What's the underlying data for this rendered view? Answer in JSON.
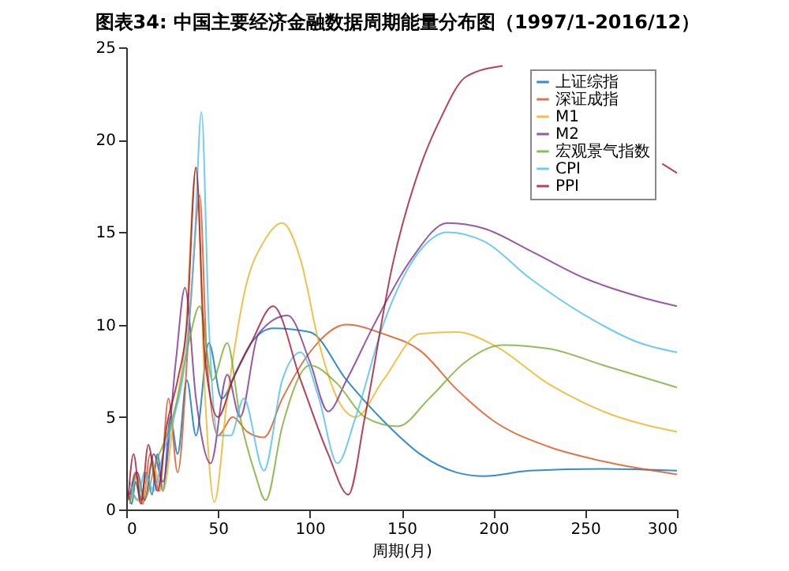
{
  "chart_data": {
    "type": "line",
    "title": "图表34:   中国主要经济金融数据周期能量分布图（1997/1-2016/12）",
    "xlabel": "周期(月)",
    "xlim": [
      0,
      300
    ],
    "xticks": [
      0,
      50,
      100,
      150,
      200,
      250,
      300
    ],
    "ylim": [
      0,
      25
    ],
    "yticks": [
      0,
      5,
      10,
      15,
      20,
      25
    ],
    "grid": false,
    "legend": "top right",
    "marker": "none",
    "line_style": "solid",
    "series": [
      {
        "name": "上证综指",
        "color": "#0072bd",
        "x": [
          1,
          3,
          5,
          8,
          11,
          14,
          17,
          20,
          24,
          28,
          33,
          38,
          45,
          52,
          60,
          68,
          80,
          100,
          120,
          140,
          160,
          180,
          195,
          220,
          260,
          300
        ],
        "values": [
          1,
          0.3,
          1.5,
          0.5,
          2,
          0.8,
          3,
          1,
          5,
          3,
          7,
          4,
          9,
          6,
          7.5,
          9,
          9.8,
          9.6,
          7,
          4.8,
          3,
          2,
          1.8,
          2.1,
          2.2,
          2.1
        ]
      },
      {
        "name": "深证成指",
        "color": "#d95319",
        "x": [
          2,
          5,
          9,
          13,
          18,
          23,
          28,
          35,
          40,
          44,
          50,
          58,
          66,
          75,
          85,
          100,
          120,
          140,
          160,
          180,
          200,
          230,
          260,
          300
        ],
        "values": [
          0.5,
          2,
          0.3,
          3,
          1,
          6,
          2,
          11,
          17,
          8,
          4,
          5,
          4.2,
          3.9,
          6,
          8.5,
          10,
          9.5,
          8.6,
          6.5,
          4.8,
          3.4,
          2.6,
          1.9
        ]
      },
      {
        "name": "M1",
        "color": "#edb120",
        "x": [
          3,
          8,
          14,
          20,
          26,
          32,
          38,
          43,
          48,
          55,
          65,
          75,
          85,
          95,
          105,
          115,
          125,
          140,
          160,
          180,
          200,
          230,
          260,
          300
        ],
        "values": [
          1,
          0.4,
          2.5,
          1,
          5,
          9,
          18.5,
          6,
          0.4,
          6,
          12,
          14.5,
          15.5,
          13.5,
          9,
          6,
          5,
          7,
          9.5,
          9.6,
          8.9,
          6.8,
          5.3,
          4.2
        ]
      },
      {
        "name": "M2",
        "color": "#7e2f8e",
        "x": [
          2,
          6,
          10,
          15,
          20,
          27,
          32,
          38,
          46,
          55,
          62,
          72,
          88,
          100,
          110,
          120,
          135,
          155,
          175,
          195,
          220,
          250,
          280,
          300
        ],
        "values": [
          0.8,
          2,
          0.5,
          3,
          1.5,
          8,
          12,
          6,
          2.5,
          7.3,
          5,
          9.5,
          10.5,
          8,
          5.3,
          7,
          10,
          13.5,
          15.5,
          15.2,
          14,
          12.5,
          11.5,
          11
        ]
      },
      {
        "name": "宏观景气指数",
        "color": "#77ac30",
        "x": [
          2,
          6,
          10,
          16,
          22,
          28,
          34,
          40,
          47,
          55,
          62,
          70,
          76,
          85,
          100,
          115,
          130,
          148,
          165,
          185,
          205,
          230,
          260,
          300
        ],
        "values": [
          0.3,
          1.8,
          0.6,
          2.5,
          4,
          6,
          9,
          11,
          7,
          9,
          5,
          2,
          0.5,
          4.5,
          7.8,
          6.8,
          5,
          4.5,
          6,
          8,
          8.9,
          8.7,
          7.8,
          6.6
        ]
      },
      {
        "name": "CPI",
        "color": "#4dbeee",
        "x": [
          2,
          6,
          10,
          15,
          20,
          26,
          32,
          37,
          41,
          45,
          50,
          57,
          64,
          75,
          85,
          95,
          105,
          115,
          125,
          140,
          160,
          175,
          195,
          220,
          250,
          280,
          300
        ],
        "values": [
          1.5,
          0.5,
          2,
          1,
          3,
          5,
          8,
          14,
          21.5,
          10,
          4,
          4,
          6,
          2.1,
          7,
          8.5,
          6,
          2.5,
          5,
          10,
          14,
          15,
          14.5,
          12.5,
          10.5,
          9,
          8.5
        ]
      },
      {
        "name": "PPI",
        "color": "#a2142f",
        "x": [
          1,
          4,
          8,
          12,
          17,
          22,
          28,
          33,
          38,
          43,
          50,
          58,
          68,
          80,
          95,
          110,
          121,
          130,
          145,
          160,
          171,
          185,
          205,
          230,
          260,
          292,
          300
        ],
        "values": [
          0.5,
          3,
          0.3,
          3.5,
          1,
          4.5,
          7,
          10,
          18.5,
          8,
          5,
          7,
          9,
          11,
          7,
          3,
          0.8,
          5,
          13.2,
          18.5,
          21.1,
          23.4,
          24,
          null,
          null,
          18.7,
          18.2
        ]
      }
    ]
  }
}
